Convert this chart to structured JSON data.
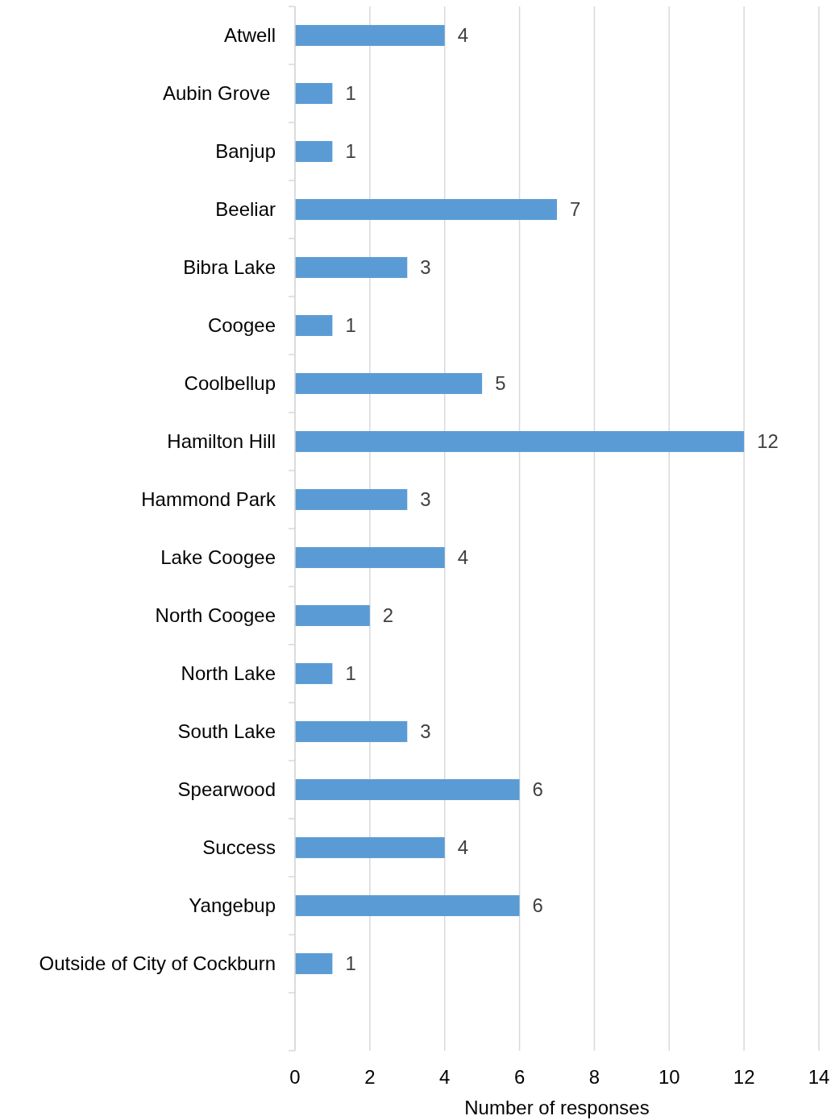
{
  "chart_data": {
    "type": "bar",
    "orientation": "horizontal",
    "xlabel": "Number of responses",
    "categories": [
      "Atwell",
      "Aubin Grove ",
      "Banjup",
      "Beeliar",
      "Bibra Lake",
      "Coogee",
      "Coolbellup",
      "Hamilton Hill",
      "Hammond Park",
      "Lake Coogee",
      "North Coogee",
      "North Lake",
      "South Lake",
      "Spearwood",
      "Success",
      "Yangebup",
      "Outside of City of Cockburn",
      null
    ],
    "values": [
      4,
      1,
      1,
      7,
      3,
      1,
      5,
      12,
      3,
      4,
      2,
      1,
      3,
      6,
      4,
      6,
      1,
      null
    ],
    "color": "#5b9bd5",
    "xlim": [
      0,
      14
    ],
    "xticks": [
      0,
      2,
      4,
      6,
      8,
      10,
      12,
      14
    ],
    "grid": "x",
    "data_labels": true
  }
}
